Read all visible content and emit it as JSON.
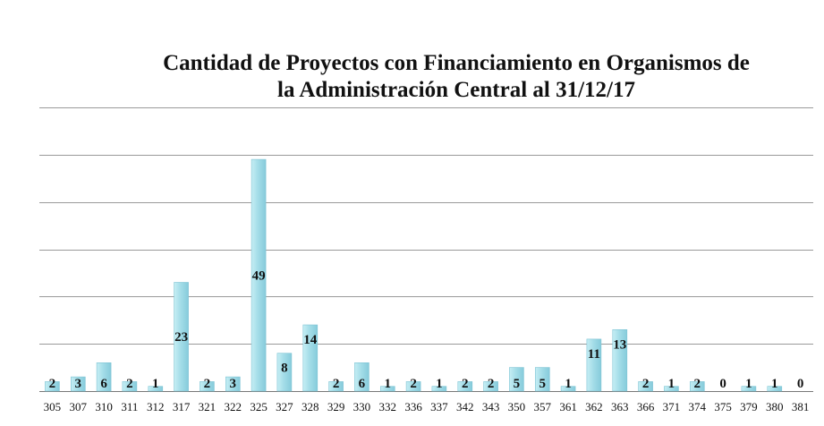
{
  "chart_data": {
    "type": "bar",
    "title": [
      "Cantidad de Proyectos con Financiamiento en Organismos de",
      "la Administración Central al 31/12/17"
    ],
    "categories": [
      "305",
      "307",
      "310",
      "311",
      "312",
      "317",
      "321",
      "322",
      "325",
      "327",
      "328",
      "329",
      "330",
      "332",
      "336",
      "337",
      "342",
      "343",
      "350",
      "357",
      "361",
      "362",
      "363",
      "366",
      "371",
      "374",
      "375",
      "379",
      "380",
      "381"
    ],
    "values": [
      2,
      3,
      6,
      2,
      1,
      23,
      2,
      3,
      49,
      8,
      14,
      2,
      6,
      1,
      2,
      1,
      2,
      2,
      5,
      5,
      1,
      11,
      13,
      2,
      1,
      2,
      0,
      1,
      1,
      0
    ],
    "ylim": [
      0,
      60
    ],
    "y_gridline_step": 10,
    "xlabel": "",
    "ylabel": "",
    "grid": true,
    "bar_color": "#a8e0ea"
  }
}
